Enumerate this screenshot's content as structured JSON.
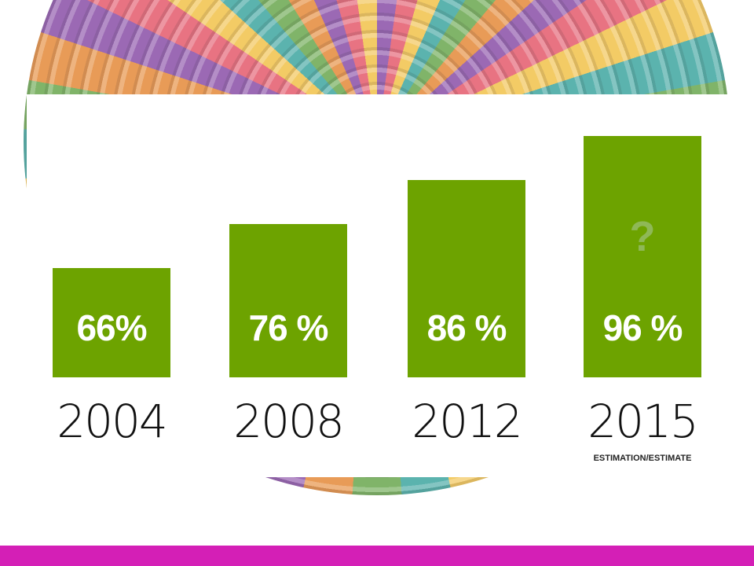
{
  "chart_data": {
    "type": "bar",
    "categories": [
      "2004",
      "2008",
      "2012",
      "2015"
    ],
    "values": [
      66,
      76,
      86,
      96
    ],
    "value_labels": [
      "66%",
      "76 %",
      "86 %",
      "96 %"
    ],
    "title": "",
    "xlabel": "",
    "ylabel": "",
    "ylim": [
      0,
      100
    ],
    "grid": false,
    "bar_color": "#6da300",
    "annotations": [
      {
        "category": "2015",
        "text": "?"
      },
      {
        "category": "2015",
        "text": "ESTIMATION/ESTIMATE"
      }
    ]
  },
  "colors": {
    "bar": "#6da300",
    "bottom_bar": "#d41fb6",
    "panel": "#ffffff"
  }
}
